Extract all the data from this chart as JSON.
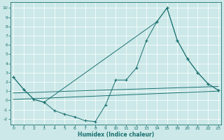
{
  "background_color": "#cce8e8",
  "line_color": "#1a7070",
  "grid_color": "#b0d8d8",
  "xlabel": "Humidex (Indice chaleur)",
  "marker": "+",
  "xtick_labels": [
    "0",
    "1",
    "2",
    "3",
    "4",
    "5",
    "6",
    "7",
    "8",
    "9",
    "10",
    "11",
    "12",
    "13",
    "14",
    "15",
    "19",
    "20",
    "21",
    "22",
    "23"
  ],
  "xtick_positions": [
    0,
    1,
    2,
    3,
    4,
    5,
    6,
    7,
    8,
    9,
    10,
    11,
    12,
    13,
    14,
    15,
    16,
    17,
    18,
    19,
    20
  ],
  "yticks": [
    -2,
    -1,
    0,
    1,
    2,
    3,
    4,
    5,
    6,
    7,
    8,
    9,
    10
  ],
  "xlim": [
    -0.3,
    20.3
  ],
  "ylim": [
    -2.6,
    10.6
  ],
  "line1_x": [
    0,
    1,
    2,
    3,
    4,
    5,
    6,
    7,
    8,
    9,
    10,
    11,
    12,
    13,
    14,
    15,
    16,
    17,
    18,
    19,
    20
  ],
  "line1_y": [
    2.5,
    1.2,
    0.1,
    -0.2,
    -1.1,
    -1.5,
    -1.8,
    -2.2,
    -2.3,
    -0.5,
    2.2,
    2.2,
    3.5,
    6.5,
    8.5,
    10.0,
    6.5,
    4.5,
    3.0,
    1.8,
    1.1
  ],
  "line2_x": [
    0,
    1,
    2,
    3,
    14,
    15,
    16,
    17,
    18,
    19,
    20
  ],
  "line2_y": [
    2.5,
    1.2,
    0.1,
    -0.2,
    8.5,
    10.0,
    6.5,
    4.5,
    3.0,
    1.8,
    1.1
  ],
  "line3_x": [
    0,
    20
  ],
  "line3_y": [
    0.8,
    1.5
  ],
  "line4_x": [
    0,
    20
  ],
  "line4_y": [
    0.1,
    1.0
  ]
}
